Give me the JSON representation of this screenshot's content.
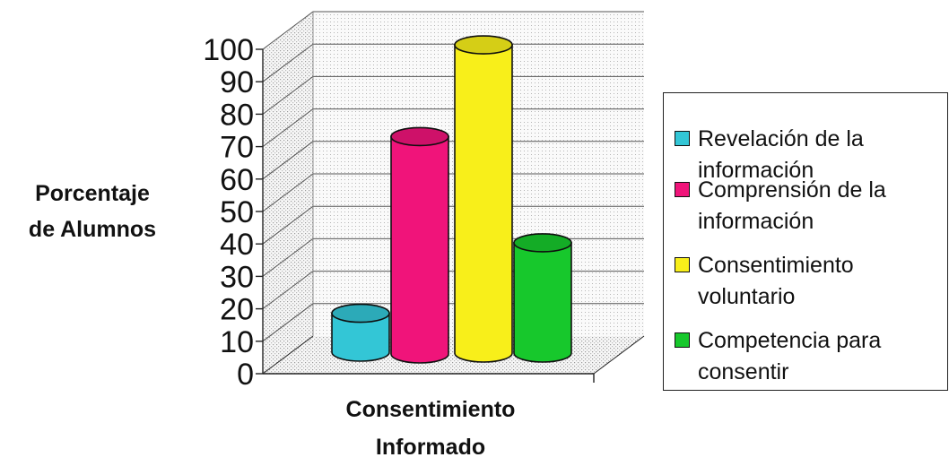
{
  "chart_data": {
    "type": "bar",
    "style": "3d-cylinder",
    "xlabel_lines": [
      "Consentimiento",
      "Informado"
    ],
    "ylabel_lines": [
      "Porcentaje",
      "de Alumnos"
    ],
    "ylim": [
      0,
      100
    ],
    "yticks": [
      "0",
      "10",
      "20",
      "30",
      "40",
      "50",
      "60",
      "70",
      "80",
      "90",
      "100"
    ],
    "grid": true,
    "legend_position": "right",
    "series": [
      {
        "name_lines": [
          "Revelación de la",
          "información"
        ],
        "value": 12,
        "color": "#33c6d6"
      },
      {
        "name_lines": [
          "Comprensión de la",
          "información"
        ],
        "value": 67,
        "color": "#f0147a"
      },
      {
        "name_lines": [
          "Consentimiento",
          "voluntario"
        ],
        "value": 95,
        "color": "#f8ef1a"
      },
      {
        "name_lines": [
          "Competencia para",
          "consentir"
        ],
        "value": 34,
        "color": "#17c82c"
      }
    ]
  }
}
